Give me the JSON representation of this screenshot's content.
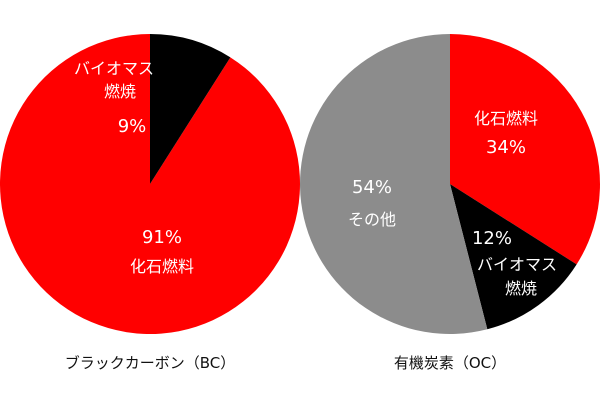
{
  "chart_data": [
    {
      "type": "pie",
      "title": "ブラックカーボン（BC）",
      "start_angle_deg": 0,
      "direction": "counterclockwise",
      "slices": [
        {
          "value": 91,
          "pct_label": "91%",
          "label_lines": [
            "化石燃料"
          ],
          "color": "#ff0000"
        },
        {
          "value": 9,
          "pct_label": "9%",
          "label_lines": [
            "バイオマス",
            "燃焼"
          ],
          "color": "#000000"
        }
      ]
    },
    {
      "type": "pie",
      "title": "有機炭素（OC）",
      "start_angle_deg": 0,
      "direction": "clockwise",
      "slices": [
        {
          "value": 34,
          "pct_label": "34%",
          "label_lines": [
            "化石燃料"
          ],
          "color": "#ff0000"
        },
        {
          "value": 12,
          "pct_label": "12%",
          "label_lines": [
            "バイオマス",
            "燃焼"
          ],
          "color": "#000000"
        },
        {
          "value": 54,
          "pct_label": "54%",
          "label_lines": [
            "その他"
          ],
          "color": "#8c8c8c"
        }
      ]
    }
  ]
}
